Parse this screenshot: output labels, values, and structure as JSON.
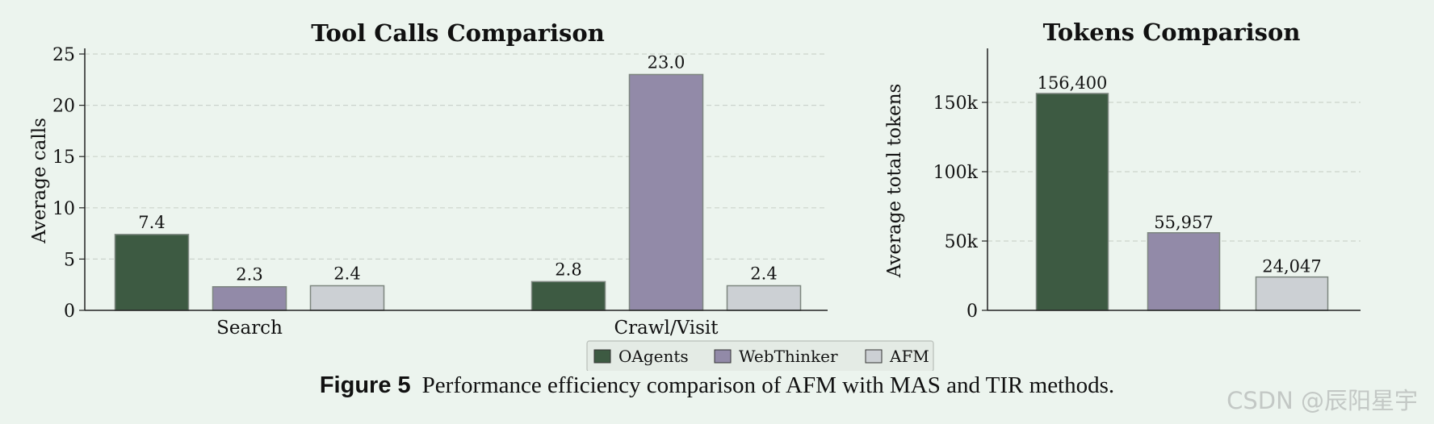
{
  "colors": {
    "background": "#ecf4ee",
    "OAgents": "#3d5a42",
    "WebThinker": "#928aa8",
    "AFM": "#ccd0d4",
    "grid": "#cbd3cc",
    "bar_edge": "#7d867f"
  },
  "legend": {
    "items": [
      {
        "name": "OAgents",
        "color": "#3d5a42"
      },
      {
        "name": "WebThinker",
        "color": "#928aa8"
      },
      {
        "name": "AFM",
        "color": "#ccd0d4"
      }
    ],
    "placement": "bottom-center"
  },
  "caption": {
    "label": "Figure 5",
    "text": "Performance efficiency comparison of AFM with MAS and TIR methods."
  },
  "watermark": "CSDN @辰阳星宇",
  "chart_data": [
    {
      "type": "bar",
      "title": "Tool Calls Comparison",
      "xlabel": "",
      "ylabel": "Average calls",
      "categories": [
        "Search",
        "Crawl/Visit"
      ],
      "series": [
        {
          "name": "OAgents",
          "values": [
            7.4,
            2.8
          ],
          "labels": [
            "7.4",
            "2.8"
          ]
        },
        {
          "name": "WebThinker",
          "values": [
            2.3,
            23.0
          ],
          "labels": [
            "2.3",
            "23.0"
          ]
        },
        {
          "name": "AFM",
          "values": [
            2.4,
            2.4
          ],
          "labels": [
            "2.4",
            "2.4"
          ]
        }
      ],
      "ylim": [
        0,
        25
      ],
      "yticks": [
        0,
        5,
        10,
        15,
        20,
        25
      ],
      "ytick_labels": [
        "0",
        "5",
        "10",
        "15",
        "20",
        "25"
      ],
      "grid": true
    },
    {
      "type": "bar",
      "title": "Tokens Comparison",
      "xlabel": "",
      "ylabel": "Average total tokens",
      "categories": [
        "OAgents",
        "WebThinker",
        "AFM"
      ],
      "values": [
        156400,
        55957,
        24047
      ],
      "labels": [
        "156,400",
        "55,957",
        "24,047"
      ],
      "ylim": [
        0,
        170000
      ],
      "yticks": [
        0,
        50000,
        100000,
        150000
      ],
      "ytick_labels": [
        "0",
        "50k",
        "100k",
        "150k"
      ],
      "grid": true
    }
  ]
}
